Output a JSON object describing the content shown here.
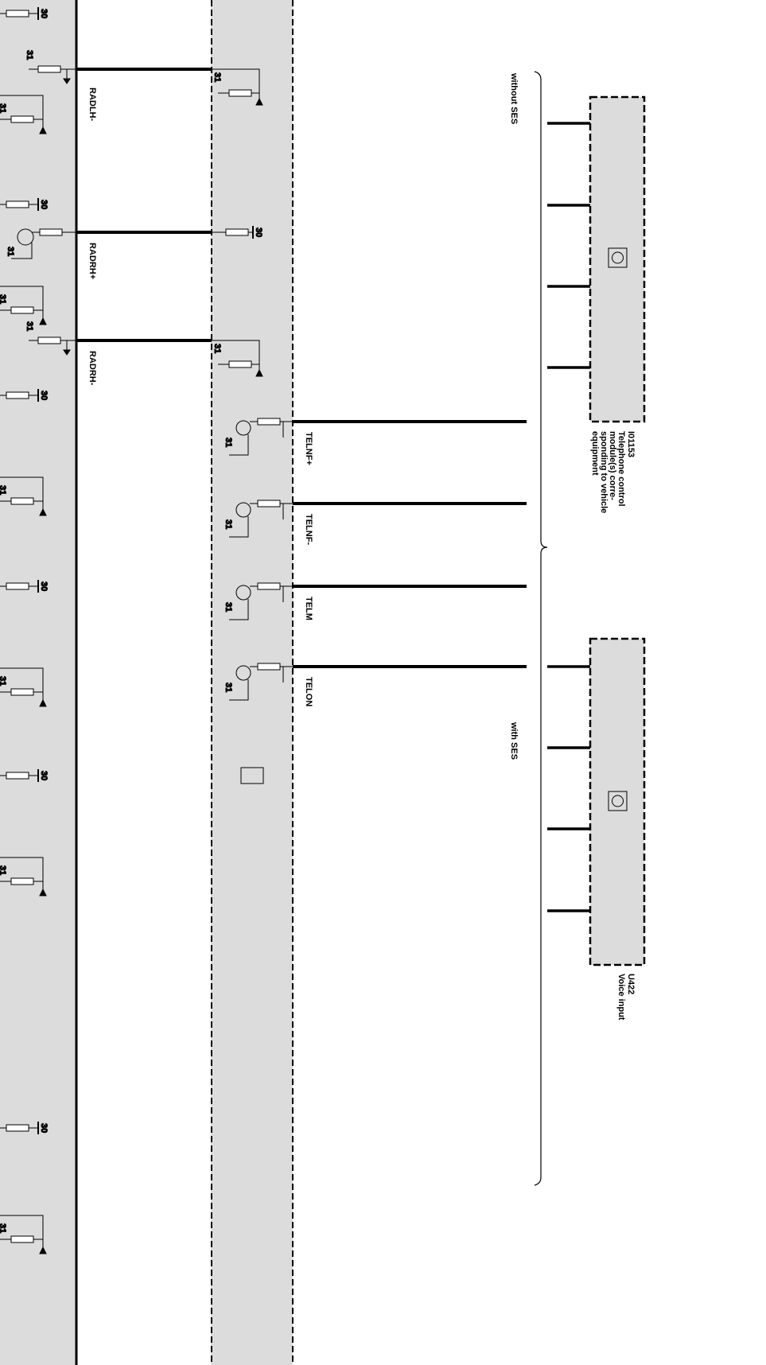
{
  "signals": {
    "radlh_minus": "RADLH-",
    "radrh_plus": "RADRH+",
    "radrh_minus": "RADRH-",
    "telnf_plus": "TELNF+",
    "telnf_minus": "TELNF-",
    "telm": "TELM",
    "telon": "TELON"
  },
  "pins": {
    "supply": "30",
    "ground": "31"
  },
  "variants": {
    "without": "without SES",
    "with": "with SES"
  },
  "modules": [
    {
      "id": "I01153",
      "name_lines": [
        "Telephone control",
        "module(s) corre-",
        "sponding to vehicle",
        "equipment"
      ]
    },
    {
      "id": "U422",
      "name_lines": [
        "Voice input"
      ]
    }
  ],
  "colors": {
    "panel": "#dcdcdc",
    "line": "#000000"
  }
}
